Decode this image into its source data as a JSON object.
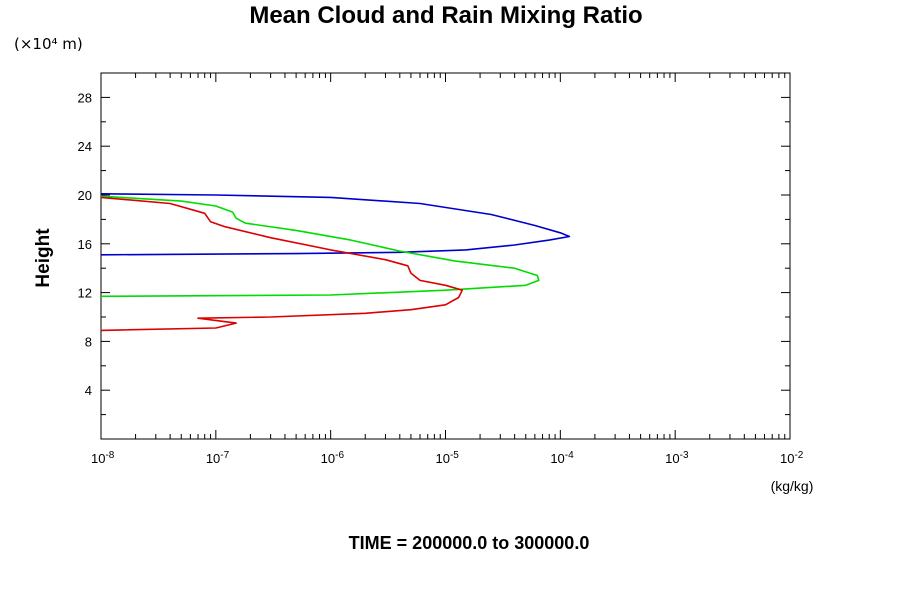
{
  "chart_data": {
    "type": "line",
    "title": "Mean Cloud and Rain Mixing Ratio",
    "y_unit": "(×10⁴ m)",
    "ylabel": "Height",
    "x_unit": "(kg/kg)",
    "footer": "TIME = 200000.0 to 300000.0",
    "x_scale": "log",
    "xlim": [
      1e-08,
      0.01
    ],
    "ylim": [
      0,
      30
    ],
    "x_ticks": [
      {
        "value": 1e-08,
        "mantissa": "10",
        "exp": "-8"
      },
      {
        "value": 1e-07,
        "mantissa": "10",
        "exp": "-7"
      },
      {
        "value": 1e-06,
        "mantissa": "10",
        "exp": "-6"
      },
      {
        "value": 1e-05,
        "mantissa": "10",
        "exp": "-5"
      },
      {
        "value": 0.0001,
        "mantissa": "10",
        "exp": "-4"
      },
      {
        "value": 0.001,
        "mantissa": "10",
        "exp": "-3"
      },
      {
        "value": 0.01,
        "mantissa": "10",
        "exp": "-2"
      }
    ],
    "y_ticks": [
      4,
      8,
      12,
      16,
      20,
      24,
      28
    ],
    "grid": false,
    "series": [
      {
        "color": "#0000cc",
        "points": [
          [
            1e-08,
            15.1
          ],
          [
            5e-07,
            15.2
          ],
          [
            4e-06,
            15.3
          ],
          [
            1.5e-05,
            15.5
          ],
          [
            4e-05,
            15.9
          ],
          [
            8e-05,
            16.3
          ],
          [
            0.00012,
            16.6
          ],
          [
            0.0001,
            16.9
          ],
          [
            6e-05,
            17.5
          ],
          [
            2.5e-05,
            18.4
          ],
          [
            6e-06,
            19.3
          ],
          [
            1e-06,
            19.8
          ],
          [
            1e-07,
            20.0
          ],
          [
            1e-08,
            20.1
          ]
        ]
      },
      {
        "color": "#00dd00",
        "points": [
          [
            1e-08,
            11.7
          ],
          [
            1e-06,
            11.8
          ],
          [
            1e-05,
            12.2
          ],
          [
            5e-05,
            12.6
          ],
          [
            6.5e-05,
            13.0
          ],
          [
            6.3e-05,
            13.4
          ],
          [
            4e-05,
            14.0
          ],
          [
            1.2e-05,
            14.6
          ],
          [
            4e-06,
            15.4
          ],
          [
            1.5e-06,
            16.3
          ],
          [
            5e-07,
            17.1
          ],
          [
            1.8e-07,
            17.7
          ],
          [
            1.5e-07,
            18.1
          ],
          [
            1.4e-07,
            18.6
          ],
          [
            1e-07,
            19.1
          ],
          [
            5e-08,
            19.5
          ],
          [
            1e-08,
            19.9
          ]
        ]
      },
      {
        "color": "#dd0000",
        "points": [
          [
            1e-08,
            8.9
          ],
          [
            1e-07,
            9.1
          ],
          [
            1.5e-07,
            9.5
          ],
          [
            7e-08,
            9.9
          ],
          [
            3e-07,
            10.0
          ],
          [
            2e-06,
            10.3
          ],
          [
            5e-06,
            10.6
          ],
          [
            1e-05,
            11.0
          ],
          [
            1.3e-05,
            11.6
          ],
          [
            1.4e-05,
            12.2
          ],
          [
            1e-05,
            12.6
          ],
          [
            6e-06,
            13.0
          ],
          [
            5e-06,
            13.6
          ],
          [
            4.7e-06,
            14.2
          ],
          [
            3e-06,
            14.7
          ],
          [
            1e-06,
            15.5
          ],
          [
            3e-07,
            16.5
          ],
          [
            1.2e-07,
            17.4
          ],
          [
            9e-08,
            17.8
          ],
          [
            8e-08,
            18.5
          ],
          [
            4e-08,
            19.3
          ],
          [
            1e-08,
            19.8
          ]
        ]
      }
    ]
  }
}
